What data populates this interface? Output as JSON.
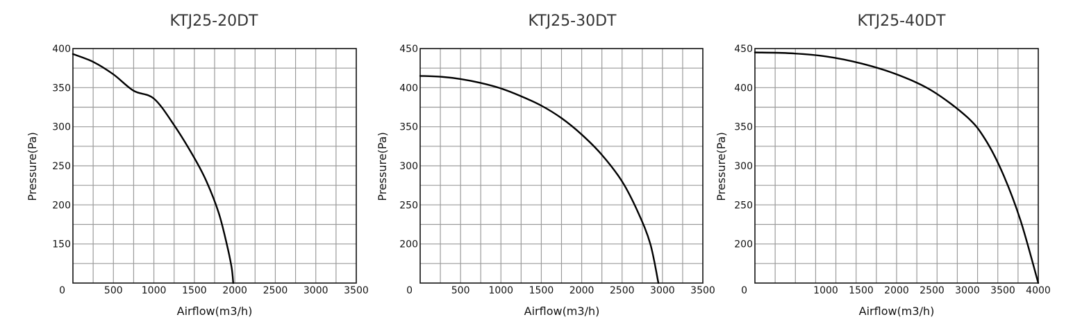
{
  "chart_data": [
    {
      "type": "line",
      "title": "KTJ25-20DT",
      "xlabel": "Airflow(m3/h)",
      "ylabel": "Pressure(Pa)",
      "xlim": [
        0,
        3500
      ],
      "ylim": [
        100,
        400
      ],
      "x_ticks": [
        0,
        500,
        1000,
        1500,
        2000,
        2500,
        3000,
        3500
      ],
      "x_tick_labels": [
        "0",
        "500",
        "1000",
        "1500",
        "2000",
        "2500",
        "3000",
        "3500"
      ],
      "y_ticks": [
        150,
        200,
        250,
        300,
        350,
        400
      ],
      "y_tick_labels": [
        "150",
        "200",
        "250",
        "300",
        "350",
        "400"
      ],
      "grid": true,
      "series": [
        {
          "x": [
            0,
            250,
            500,
            750,
            1000,
            1250,
            1500,
            1650,
            1800,
            1900,
            1960,
            1980
          ],
          "y": [
            393,
            383,
            367,
            346,
            336,
            302,
            260,
            230,
            190,
            150,
            120,
            100
          ]
        }
      ]
    },
    {
      "type": "line",
      "title": "KTJ25-30DT",
      "xlabel": "Airflow(m3/h)",
      "ylabel": "Pressure(Pa)",
      "xlim": [
        0,
        3500
      ],
      "ylim": [
        150,
        450
      ],
      "x_ticks": [
        0,
        500,
        1000,
        1500,
        2000,
        2500,
        3000,
        3500
      ],
      "x_tick_labels": [
        "0",
        "500",
        "1000",
        "1500",
        "2000",
        "2500",
        "3000",
        "3500"
      ],
      "y_ticks": [
        200,
        250,
        300,
        350,
        400,
        450
      ],
      "y_tick_labels": [
        "200",
        "250",
        "300",
        "350",
        "400",
        "450"
      ],
      "grid": true,
      "series": [
        {
          "x": [
            0,
            250,
            500,
            750,
            1000,
            1250,
            1500,
            1750,
            2000,
            2250,
            2500,
            2700,
            2850,
            2950
          ],
          "y": [
            415,
            414,
            411,
            406,
            399,
            389,
            377,
            361,
            340,
            314,
            280,
            240,
            200,
            150
          ]
        }
      ]
    },
    {
      "type": "line",
      "title": "KTJ25-40DT",
      "xlabel": "Airflow(m3/h)",
      "ylabel": "Pressure(Pa)",
      "xlim": [
        0,
        4000
      ],
      "ylim": [
        150,
        450
      ],
      "x_ticks": [
        0,
        1000,
        1500,
        2000,
        2500,
        3000,
        3500,
        4000
      ],
      "x_tick_labels": [
        "0",
        "1000",
        "1500",
        "2000",
        "2500",
        "3000",
        "3500",
        "4000"
      ],
      "y_ticks": [
        200,
        250,
        300,
        350,
        400,
        450
      ],
      "y_tick_labels": [
        "200",
        "250",
        "300",
        "350",
        "400",
        "450"
      ],
      "grid": true,
      "series": [
        {
          "x": [
            0,
            500,
            1000,
            1500,
            2000,
            2500,
            3000,
            3250,
            3500,
            3750,
            4000
          ],
          "y": [
            445,
            444,
            440,
            431,
            417,
            396,
            362,
            334,
            290,
            230,
            150
          ]
        }
      ]
    }
  ]
}
